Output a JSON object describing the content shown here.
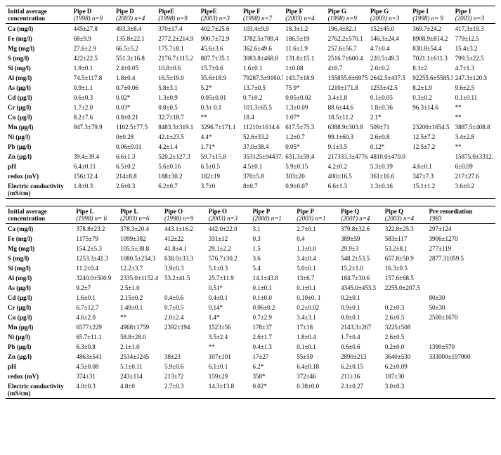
{
  "tableTop": {
    "header_label": "Initial average concentration",
    "columns": [
      {
        "l1": "Pipe D",
        "l2": "(1998) n=9"
      },
      {
        "l1": "Pipe D",
        "l2": "(2003) n=4"
      },
      {
        "l1": "PipeE",
        "l2": "(1998) n=9"
      },
      {
        "l1": "PipeE",
        "l2": "(2003) n=3"
      },
      {
        "l1": "Pipe F",
        "l2": "(1998) n=7"
      },
      {
        "l1": "Pipe F",
        "l2": "(2003) n=4"
      },
      {
        "l1": "Pipe G",
        "l2": "(1998) n=9"
      },
      {
        "l1": "Pipe G",
        "l2": "(2003) n=3"
      },
      {
        "l1": "Pipe I",
        "l2": "(1998) n= 9"
      },
      {
        "l1": "Pipe I",
        "l2": "(2003) n=3"
      }
    ],
    "rows": [
      {
        "label": "Ca (mg/l)",
        "v": [
          "445±27.8",
          "493.3±8.4",
          "370±17.4",
          "402.7±25.6",
          "103.4±9.9",
          "18.3±1.2",
          "196.4±82.1",
          "152±45.0",
          "369.7±24.2",
          "417.3±19.3"
        ]
      },
      {
        "label": "Fe (mg/l)",
        "v": [
          "68±9.9",
          "135.8±22.1",
          "2772.2±214.9",
          "900.7±72.9",
          "3782.5±709.4",
          "186.5±19",
          "2762.2±570.1",
          "146.3±24.4",
          "8908.9±814.2",
          "779±12.5"
        ]
      },
      {
        "label": "Mg (mg/l)",
        "v": [
          "27.6±2.9",
          "66.5±5.2",
          "175.7±8.1",
          "45.6±3.6",
          "362.6±49.6",
          "11.6±1.9",
          "257.6±56.7",
          "4.7±0.4",
          "830.8±54.4",
          "15.4±3.2"
        ]
      },
      {
        "label": "S (mg/l)",
        "v": [
          "422±22.5",
          "551.3±16.8",
          "2176.7±115.2",
          "887.7±35.1",
          "3083.8±468.8",
          "131.8±15.1",
          "2516.7±600.4",
          "220.5±49.3",
          "7021.1±611.3",
          "799.5±22.5"
        ]
      },
      {
        "label": "Si (mg/l)",
        "v": [
          "1.9±0.1",
          "2.4±0.05",
          "10.8±0.6",
          "15.7±0.6",
          "1.6±0.1",
          "1±0.08",
          "4±0.7",
          "2.6±0.2",
          "8.1±2",
          "4.7±1.3"
        ]
      },
      {
        "label": "Al (mg/l)",
        "v": [
          "74.5±117.8",
          "1.8±0.4",
          "16.5±19.0",
          "35.6±18.9",
          "79287.5±9160.7",
          "143.7±18.9",
          "155855.6±69752.4",
          "2642.5±437.5",
          "92255.6±5585.3",
          "247.3±120.3"
        ]
      },
      {
        "label": "As (µg/l)",
        "v": [
          "0.9±1.1",
          "0.7±0.06",
          "5.8±3.1",
          "5.2*",
          "13.7±0.5",
          "75 9*",
          "1210±171.8",
          "1253±42.5",
          "8.2±1.9",
          "9.6±2.5"
        ]
      },
      {
        "label": "Cd (µg/l)",
        "v": [
          "0.6±0.3",
          "0.02*",
          "1.3±0.9",
          "0.05±0.01",
          "0.7±0.2",
          "0.05±0.02",
          "3.4±1.8",
          "0.1±0.05",
          "0.3±0.2",
          "0.1±0.11"
        ]
      },
      {
        "label": "Cr (µg/l)",
        "v": [
          "1.7±2.0",
          "0.03*",
          "0.8±0.5",
          "0.3± 0.1",
          "101.3±65.5",
          "1.3±0.09",
          "88.6±44.6",
          "1.8±0.36",
          "96.3±14.6",
          "**"
        ]
      },
      {
        "label": "Cu (µg/l)",
        "v": [
          "8.2±7.6",
          "0.8±0.21",
          "32.7±18.7",
          "**",
          "18.4",
          "1.07*",
          "18.5±11.2",
          "2.1*",
          "",
          "**"
        ]
      },
      {
        "label": "Mn (µg/l)",
        "v": [
          "947.3±79.9",
          "1102.5±77.5",
          "8483.3±319.1",
          "3296.7±171.1",
          "11210±1614.6",
          "617.5±75.3",
          "6388.9±303.8",
          "509±71",
          "23200±1654.5",
          "3887.5±408.8"
        ]
      },
      {
        "label": "Ni (µg/l)",
        "v": [
          "",
          "0±0.28",
          "42.1±23.5",
          "4.4*",
          "52.6±33.2",
          "1.2±0.7",
          "99.1±60.3",
          "2.6±0.8",
          "12.5±7.2",
          "3.4±2.8"
        ]
      },
      {
        "label": "Pb (µg/l)",
        "v": [
          "",
          "0.06±0.01",
          "4.2±1.4",
          "1.71*",
          "37.0±38.4",
          "0.05*",
          "9.1±3.5",
          "0.12*",
          "12.5±7.2",
          "**"
        ]
      },
      {
        "label": "Zn (µg/l)",
        "v": [
          "39.4±39.4",
          "6.6±1.3",
          "520.2±127.3",
          "59.7±15.8",
          "353125±94437.3",
          "631.3±59.4",
          "217333.3±47765.1",
          "4810.0±470.0",
          "",
          "15875.0±3312."
        ]
      },
      {
        "label": "pH",
        "v": [
          "6.4±0.11",
          "6.5±0.2",
          "5.6±0.16",
          "6.5±0.5",
          "4.5±0.1",
          "5.9±0.15",
          "4.2±0.2",
          "5.3±0.19",
          "4.6±0.1",
          "6±0.09"
        ]
      },
      {
        "label": "redox (mV)",
        "v": [
          "156±12.4",
          "214±8.8",
          "188±30.2",
          "182±19",
          "370±5.8",
          "303±20",
          "400±16.5",
          "361±16.6",
          "347±7.3",
          "217±27.6"
        ]
      },
      {
        "label": "Electric conductivity (mS/cm)",
        "v": [
          "1.8±0.3",
          "2.6±0.3",
          "6.2±0.7",
          "3.7±0",
          "8±0.7",
          "0.9±0.07",
          "6.6±1.3",
          "1.3±0.16",
          "15.1±1.2",
          "3.6±0.2"
        ]
      }
    ]
  },
  "tableBottom": {
    "header_label": "Initial average concentration",
    "columns": [
      {
        "l1": "Pipe L",
        "l2": "(1998) n= 6"
      },
      {
        "l1": "Pipe L",
        "l2": "(2003) n=6"
      },
      {
        "l1": "Pipe O",
        "l2": "(1998) n=9"
      },
      {
        "l1": "Pipe O",
        "l2": "(2003) n=3"
      },
      {
        "l1": "Pipe P",
        "l2": "(2000) n=1"
      },
      {
        "l1": "Pipe P",
        "l2": "(2003) n=1"
      },
      {
        "l1": "Pipe Q",
        "l2": "(2001) n=4"
      },
      {
        "l1": "Pipe Q",
        "l2": "(2003) n=4"
      },
      {
        "l1": "Pre remediation",
        "l2": "1983"
      }
    ],
    "rows": [
      {
        "label": "Ca (mg/l)",
        "v": [
          "378.8±23.2",
          "378.3±20.4",
          "443.1±16.2",
          "442.0±22.0",
          "3.1",
          "2.7±0.1",
          "379.8±32.6",
          "322.8±25.3",
          "297±124"
        ]
      },
      {
        "label": "Fe (mg/l)",
        "v": [
          "1175±79",
          "1099±382",
          "412±22",
          "331±12",
          "0.3",
          "0.4",
          "389±59",
          "583±117",
          "3906±1270"
        ]
      },
      {
        "label": "Mg (mg/l)",
        "v": [
          "154.2±5.3",
          "105.5±38.8",
          "41.8±4.1",
          "29.1±2.2",
          "1.5",
          "1.1±0.0",
          "29.9±3",
          "53.2±8.1",
          "277±119"
        ]
      },
      {
        "label": "S (mg/l)",
        "v": [
          "1253.3±41.3",
          "1080.5±254.3",
          "638.0±33.3",
          "576.7±30.2",
          "3.6",
          "3.4±0.4",
          "548.2±53.5",
          "657.8±50.9",
          "2877.31059.5"
        ]
      },
      {
        "label": "Si (mg/l)",
        "v": [
          "11.2±0.4",
          "12.2±3.7",
          "3.9±0.3",
          "5.1±0.3",
          "5.4",
          "5.0±0.1",
          "15.2±1.0",
          "16.3±0.5",
          ""
        ]
      },
      {
        "label": "Al (mg/l)",
        "v": [
          "3240.0±500.9",
          "2335.0±1152.4",
          "53.2±41.5",
          "25.7±11.9",
          "14.1±43.8",
          "13±6.7",
          "184.7±30.6",
          "157.6±68.5",
          ""
        ]
      },
      {
        "label": "As (µg/l)",
        "v": [
          "9.2±7",
          "2.5±1.0",
          "",
          "0.51*",
          "0.1±0.1",
          "0.1±0.1",
          "4345.0±453.3",
          "2255.0±207.5",
          ""
        ]
      },
      {
        "label": "Cd (µg/l)",
        "v": [
          "1.6±0.1",
          "2.15±0.2",
          "0.4±0.6",
          "0.4±0.1",
          "0.1±0.0",
          "0.10±0. 1",
          "0.2±0.1",
          "",
          "80±30"
        ]
      },
      {
        "label": "Cr (µg/l)",
        "v": [
          "6.7±12.7",
          "1.49±0.1",
          "0.7±0.5",
          "0.14*",
          "0.06±0.2",
          "0.2±0.02",
          "0.9±0.1",
          "0.2±0.3",
          "50±30"
        ]
      },
      {
        "label": "Cu (µg/l)",
        "v": [
          "4.6±2.0",
          "**",
          "2.0±2.4",
          "1.4*",
          "0.7±2.9",
          "3.4±3.1",
          "0.8±0.1",
          "2.6±0.5",
          "2500±1670"
        ]
      },
      {
        "label": "Mn (µg/l)",
        "v": [
          "6577±229",
          "4968±1759",
          "2392±194",
          "1523±56",
          "178±37",
          "17±18",
          "2143.3±267",
          "3225±508",
          ""
        ]
      },
      {
        "label": "Ni (µg/l)",
        "v": [
          "65.7±11.1",
          "58.8±28.0",
          "",
          "3.5±2.4",
          "2.6±1.7",
          "1.8±0.4",
          "1.7±0.4",
          "2.6±0.5",
          ""
        ]
      },
      {
        "label": "Pb (µg/l)",
        "v": [
          "6.3±0.8",
          "2.1±1.0",
          "",
          "**",
          "0.4±1.3",
          "0.1±0.1",
          "0.6±0.6",
          "0.2±0.0",
          "1390±570"
        ]
      },
      {
        "label": "Zn (µg/l)",
        "v": [
          "4863±541",
          "2534±1245",
          "38±23",
          "107±101",
          "17±27",
          "55±59",
          "2890±213",
          "3640±530",
          "333000±197000"
        ]
      },
      {
        "label": "pH",
        "v": [
          "4.5±0.08",
          "5.1±0.11",
          "5.9±0.6",
          "6.1±0.1",
          "6.2*",
          "6.4±0.18",
          "6.2±0.15",
          "6.2±0.09",
          ""
        ]
      },
      {
        "label": "redox (mV)",
        "v": [
          "374±31",
          "243±114",
          "213±72",
          "159±29",
          "358*",
          "372±46",
          "211±16",
          "187±30",
          ""
        ]
      },
      {
        "label": "Electric conductivity (mS/cm)",
        "v": [
          "4.0±0.3",
          "4.8±0",
          "2.7±0.3",
          "14.3±13.8",
          "0.02*",
          "0.38±0.0",
          "2.1±0.27",
          "3.0±0.3",
          ""
        ]
      }
    ]
  }
}
